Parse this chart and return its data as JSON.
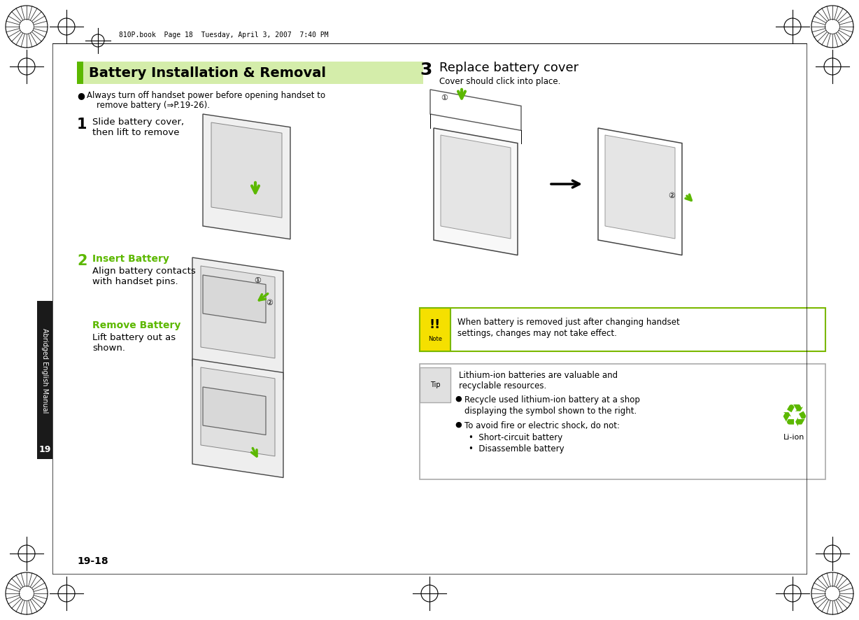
{
  "page_bg": "#ffffff",
  "header_text": "810P.book  Page 18  Tuesday, April 3, 2007  7:40 PM",
  "title": "Battery Installation & Removal",
  "title_bg": "#d4edaa",
  "green": "#5cb800",
  "dark_green": "#2d6600",
  "side_tab_bg": "#1a1a1a",
  "side_tab_text": "#ffffff",
  "side_tab_label": "Abridged English Manual",
  "side_tab_number": "19",
  "page_number": "19-18",
  "step1_text1": "Slide battery cover,",
  "step1_text2": "then lift to remove",
  "step2_label": "Insert Battery",
  "step2_text1": "Align battery contacts",
  "step2_text2": "with handset pins.",
  "step2b_label": "Remove Battery",
  "step2b_text1": "Lift battery out as",
  "step2b_text2": "shown.",
  "step3_text": "Replace battery cover",
  "step3_sub": "Cover should click into place.",
  "bullet_text1": "Always turn off handset power before opening handset to",
  "bullet_text2": "remove battery (⇒P.19-26).",
  "note_text1": "When battery is removed just after changing handset",
  "note_text2": "settings, changes may not take effect.",
  "tip_line1": "Lithium-ion batteries are valuable and",
  "tip_line2": "recyclable resources.",
  "tip_b1a": "Recycle used lithium-ion battery at a shop",
  "tip_b1b": "displaying the symbol shown to the right.",
  "tip_b2": "To avoid fire or electric shock, do not:",
  "tip_s1": "Short-circuit battery",
  "tip_s2": "Disassemble battery",
  "liion_label": "Li-ion",
  "note_icon_bg": "#f5e000",
  "note_border": "#7ab800",
  "tip_border": "#aaaaaa"
}
